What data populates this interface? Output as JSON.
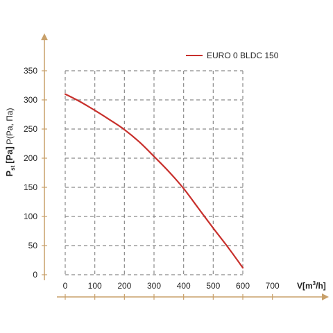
{
  "chart_data": {
    "type": "line",
    "title": "",
    "xlabel_main": "V[m",
    "xlabel_sup": "3",
    "xlabel_end": "/h]",
    "ylabel_main": "P",
    "ylabel_sub": "st",
    "ylabel_unit": "[Pa]",
    "ylabel_alt": "P(Pa, Па)",
    "xlim": [
      0,
      700
    ],
    "ylim": [
      0,
      350
    ],
    "x_ticks": [
      "0",
      "100",
      "200",
      "300",
      "400",
      "500",
      "600",
      "700"
    ],
    "y_ticks": [
      "0",
      "50",
      "100",
      "150",
      "200",
      "250",
      "300",
      "350"
    ],
    "grid": true,
    "legend_position": "top-right",
    "series": [
      {
        "name": "EURO 0 BLDC 150",
        "color": "#c8302c",
        "x": [
          0,
          50,
          100,
          150,
          200,
          250,
          300,
          350,
          400,
          450,
          500,
          550,
          600
        ],
        "y": [
          310,
          297,
          282,
          266,
          249,
          228,
          203,
          177,
          148,
          114,
          80,
          47,
          12
        ]
      }
    ]
  },
  "colors": {
    "axis": "#c8a06a",
    "grid": "#8a8a8a",
    "line": "#c8302c"
  }
}
